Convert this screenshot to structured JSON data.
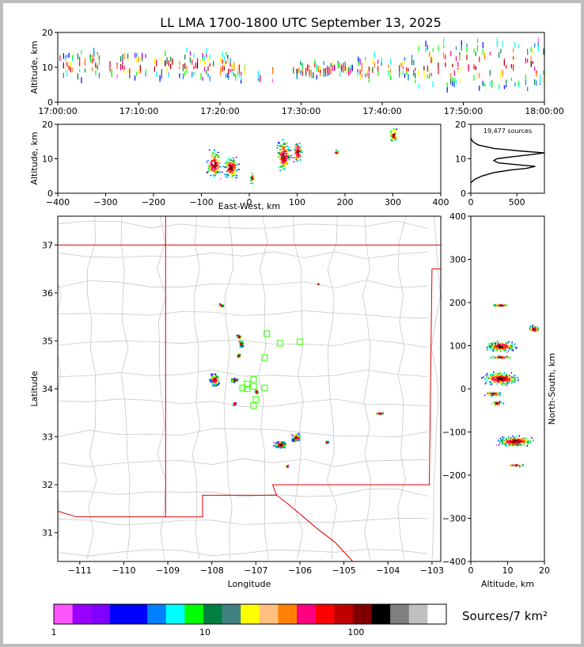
{
  "title": "LL LMA 1700-1800 UTC September 13, 2025",
  "chart_data": [
    {
      "panel": "altitude-time",
      "type": "scatter",
      "ylabel": "Altitude, km",
      "xlim": [
        "17:00:00",
        "18:00:00"
      ],
      "ylim": [
        0,
        20
      ],
      "xticks": [
        "17:00:00",
        "17:10:00",
        "17:20:00",
        "17:30:00",
        "17:40:00",
        "17:50:00",
        "18:00:00"
      ],
      "yticks": [
        "0",
        "10",
        "20"
      ],
      "clusters": [
        {
          "start_min": 0,
          "end_min": 21,
          "alt_lo_km": 6,
          "alt_hi_km": 16
        },
        {
          "start_min": 21,
          "end_min": 23,
          "alt_lo_km": 6,
          "alt_hi_km": 13
        },
        {
          "start_min": 24,
          "end_min": 25,
          "alt_lo_km": 5,
          "alt_hi_km": 9
        },
        {
          "start_min": 26,
          "end_min": 26.5,
          "alt_lo_km": 4,
          "alt_hi_km": 14
        },
        {
          "start_min": 29,
          "end_min": 37,
          "alt_lo_km": 7,
          "alt_hi_km": 12
        },
        {
          "start_min": 37,
          "end_min": 44,
          "alt_lo_km": 6,
          "alt_hi_km": 14
        },
        {
          "start_min": 44,
          "end_min": 60,
          "alt_lo_km": 3,
          "alt_hi_km": 19
        }
      ]
    },
    {
      "panel": "altitude-eastwest",
      "type": "scatter",
      "xlabel": "East-West, km",
      "ylabel": "Altitude, km",
      "xlim": [
        -400,
        400
      ],
      "ylim": [
        0,
        20
      ],
      "xticks": [
        "−400",
        "−300",
        "−200",
        "−100",
        "0",
        "100",
        "200",
        "300",
        "400"
      ],
      "yticks": [
        "0",
        "10",
        "20"
      ],
      "clusters": [
        {
          "x": -75,
          "alt": 8.5,
          "dx": 18,
          "dalt": 5
        },
        {
          "x": -40,
          "alt": 7.5,
          "dx": 20,
          "dalt": 4
        },
        {
          "x": 5,
          "alt": 4.5,
          "dx": 6,
          "dalt": 2
        },
        {
          "x": 70,
          "alt": 11,
          "dx": 18,
          "dalt": 6
        },
        {
          "x": 100,
          "alt": 12,
          "dx": 12,
          "dalt": 4
        },
        {
          "x": 180,
          "alt": 12,
          "dx": 6,
          "dalt": 1
        },
        {
          "x": 300,
          "alt": 17,
          "dx": 10,
          "dalt": 3
        }
      ]
    },
    {
      "panel": "altitude-histogram",
      "type": "line",
      "annotation": "19,477 sources",
      "xlim": [
        0,
        800
      ],
      "ylim": [
        0,
        20
      ],
      "xticks": [
        "0",
        "500"
      ],
      "yticks": [
        "0",
        "10",
        "20"
      ],
      "profile": [
        [
          0,
          3
        ],
        [
          40,
          4
        ],
        [
          120,
          5
        ],
        [
          250,
          6
        ],
        [
          450,
          6.8
        ],
        [
          600,
          7.2
        ],
        [
          700,
          7.8
        ],
        [
          500,
          8.3
        ],
        [
          300,
          8.8
        ],
        [
          250,
          9.5
        ],
        [
          280,
          10
        ],
        [
          450,
          10.6
        ],
        [
          650,
          11.2
        ],
        [
          800,
          11.7
        ],
        [
          520,
          12.3
        ],
        [
          250,
          13
        ],
        [
          80,
          14
        ],
        [
          20,
          15
        ],
        [
          0,
          16
        ]
      ]
    },
    {
      "panel": "map",
      "type": "scatter",
      "xlabel": "Longitude",
      "ylabel": "Latitude",
      "xlim": [
        -111.5,
        -102.8
      ],
      "ylim": [
        30.4,
        37.6
      ],
      "xticks": [
        "−111",
        "−110",
        "−109",
        "−108",
        "−107",
        "−106",
        "−105",
        "−104",
        "−103"
      ],
      "yticks": [
        "31",
        "32",
        "33",
        "34",
        "35",
        "36",
        "37"
      ],
      "clusters": [
        {
          "lon": -107.95,
          "lat": 34.2,
          "dlon": 0.12,
          "dlat": 0.15
        },
        {
          "lon": -107.5,
          "lat": 34.2,
          "dlon": 0.12,
          "dlat": 0.05
        },
        {
          "lon": -107.4,
          "lat": 34.7,
          "dlon": 0.05,
          "dlat": 0.05
        },
        {
          "lon": -107.35,
          "lat": 34.95,
          "dlon": 0.06,
          "dlat": 0.08
        },
        {
          "lon": -107.4,
          "lat": 35.1,
          "dlon": 0.06,
          "dlat": 0.05
        },
        {
          "lon": -107.8,
          "lat": 35.75,
          "dlon": 0.06,
          "dlat": 0.04
        },
        {
          "lon": -107.5,
          "lat": 33.7,
          "dlon": 0.04,
          "dlat": 0.05
        },
        {
          "lon": -106.45,
          "lat": 32.85,
          "dlon": 0.18,
          "dlat": 0.08
        },
        {
          "lon": -106.1,
          "lat": 33.0,
          "dlon": 0.12,
          "dlat": 0.1
        },
        {
          "lon": -106.3,
          "lat": 32.4,
          "dlon": 0.04,
          "dlat": 0.03
        },
        {
          "lon": -105.4,
          "lat": 32.9,
          "dlon": 0.04,
          "dlat": 0.03
        },
        {
          "lon": -104.2,
          "lat": 33.5,
          "dlon": 0.1,
          "dlat": 0.02
        },
        {
          "lon": -107.0,
          "lat": 33.95,
          "dlon": 0.05,
          "dlat": 0.06
        },
        {
          "lon": -105.6,
          "lat": 36.2,
          "dlon": 0.02,
          "dlat": 0.02
        }
      ],
      "stations": [
        {
          "lon": -106.75,
          "lat": 35.15
        },
        {
          "lon": -106.45,
          "lat": 34.95
        },
        {
          "lon": -106.0,
          "lat": 34.98
        },
        {
          "lon": -106.8,
          "lat": 34.65
        },
        {
          "lon": -107.05,
          "lat": 34.2
        },
        {
          "lon": -107.2,
          "lat": 34.1
        },
        {
          "lon": -107.3,
          "lat": 34.02
        },
        {
          "lon": -107.2,
          "lat": 34.0
        },
        {
          "lon": -106.8,
          "lat": 34.02
        },
        {
          "lon": -107.05,
          "lat": 34.05
        },
        {
          "lon": -107.0,
          "lat": 33.78
        },
        {
          "lon": -107.05,
          "lat": 33.65
        }
      ]
    },
    {
      "panel": "northsouth-altitude",
      "type": "scatter",
      "xlabel": "Altitude, km",
      "ylabel": "North-South, km",
      "xlim": [
        0,
        20
      ],
      "ylim": [
        -400,
        400
      ],
      "xticks": [
        "0",
        "10",
        "20"
      ],
      "yticks": [
        "−400",
        "−300",
        "−200",
        "−100",
        "0",
        "100",
        "200",
        "300",
        "400"
      ],
      "clusters": [
        {
          "alt": 8,
          "y": 195,
          "dalt": 3,
          "dy": 4
        },
        {
          "alt": 8,
          "y": 100,
          "dalt": 5,
          "dy": 15
        },
        {
          "alt": 8,
          "y": 75,
          "dalt": 4,
          "dy": 4
        },
        {
          "alt": 8,
          "y": 25,
          "dalt": 6,
          "dy": 18
        },
        {
          "alt": 6,
          "y": -10,
          "dalt": 3,
          "dy": 6
        },
        {
          "alt": 7,
          "y": -32,
          "dalt": 2,
          "dy": 6
        },
        {
          "alt": 12,
          "y": -120,
          "dalt": 6,
          "dy": 15
        },
        {
          "alt": 12,
          "y": -175,
          "dalt": 3,
          "dy": 3
        },
        {
          "alt": 17,
          "y": 140,
          "dalt": 2,
          "dy": 10
        }
      ]
    }
  ],
  "colorbar": {
    "label": "Sources/7 km²",
    "tick_labels": [
      "1",
      "10",
      "100"
    ],
    "colors": [
      "#ff55ff",
      "#9a00ff",
      "#7f00ff",
      "#0000ff",
      "#0000ff",
      "#0080ff",
      "#00ffff",
      "#00ff00",
      "#008040",
      "#408080",
      "#ffff00",
      "#ffc080",
      "#ff8000",
      "#ff0080",
      "#ff0000",
      "#c00000",
      "#800000",
      "#000000",
      "#808080",
      "#c0c0c0",
      "#ffffff"
    ]
  }
}
